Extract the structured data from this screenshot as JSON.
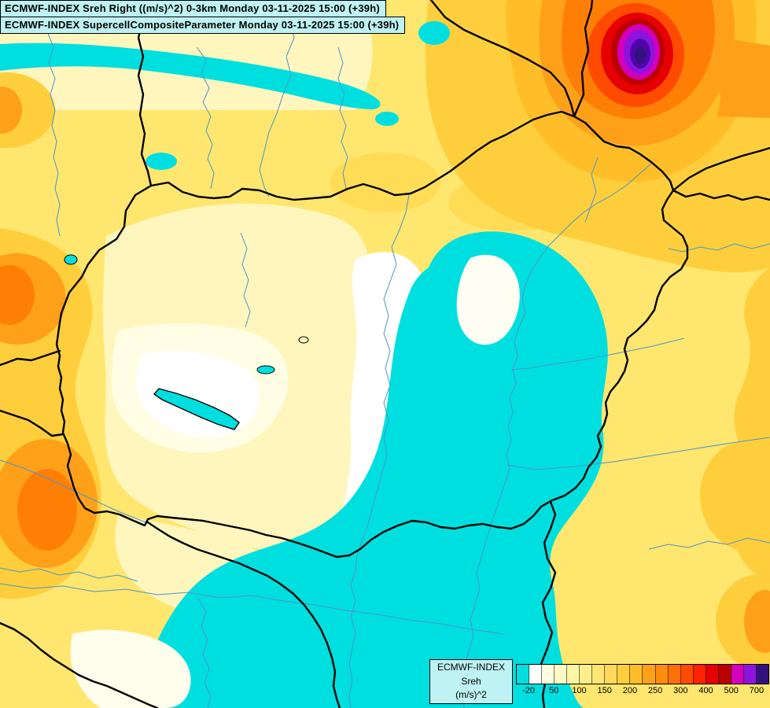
{
  "header": {
    "line1": "ECMWF-INDEX Sreh Right ((m/s)^2) 0-3km Monday 03-11-2025 15:00 (+39h)",
    "line2": "ECMWF-INDEX SupercellCompositeParameter Monday 03-11-2025 15:00 (+39h)"
  },
  "legend": {
    "title_lines": [
      "ECMWF-INDEX",
      "Sreh",
      "(m/s)^2"
    ],
    "cells": [
      "#00DFDF",
      "#FFFFFF",
      "#FFFFDF",
      "#FFFBC3",
      "#FFF6A5",
      "#FFEE8C",
      "#FFE573",
      "#FFD75A",
      "#FFCE3C",
      "#FFBE28",
      "#FFA019",
      "#FF8C0F",
      "#FF7005",
      "#FF4B00",
      "#FF2300",
      "#E60000",
      "#BB0000",
      "#D400BE",
      "#8C14DC",
      "#32127D"
    ],
    "ticks": [
      {
        "label": "-20",
        "pos": 1
      },
      {
        "label": "50",
        "pos": 3
      },
      {
        "label": "100",
        "pos": 5
      },
      {
        "label": "150",
        "pos": 7
      },
      {
        "label": "200",
        "pos": 9
      },
      {
        "label": "250",
        "pos": 11
      },
      {
        "label": "300",
        "pos": 13
      },
      {
        "label": "400",
        "pos": 15
      },
      {
        "label": "500",
        "pos": 17
      },
      {
        "label": "700",
        "pos": 19
      }
    ]
  },
  "colors": {
    "panel_bg": "#BFF2F2",
    "panel_border": "#000000",
    "map_base_yellow": "#FFE66E",
    "river_blue": "#4A96C8",
    "lake_cyan": "#00DFDF",
    "country_border": "#000000"
  }
}
